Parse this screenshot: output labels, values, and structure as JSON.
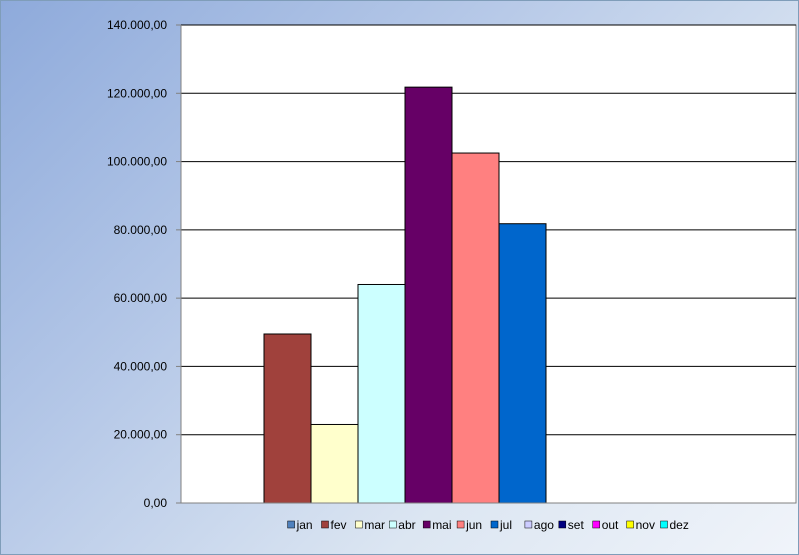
{
  "chart_data": {
    "type": "bar",
    "title": "",
    "xlabel": "",
    "ylabel": "",
    "ylim": [
      0,
      140000
    ],
    "yticks": [
      0,
      20000,
      40000,
      60000,
      80000,
      100000,
      120000,
      140000
    ],
    "ytick_labels": [
      "0,00",
      "20.000,00",
      "40.000,00",
      "60.000,00",
      "80.000,00",
      "100.000,00",
      "120.000,00",
      "140.000,00"
    ],
    "grid": true,
    "legend_position": "bottom",
    "series": [
      {
        "name": "jan",
        "value": 0,
        "color": "#4f81bd"
      },
      {
        "name": "fev",
        "value": 49500,
        "color": "#a0413c"
      },
      {
        "name": "mar",
        "value": 23000,
        "color": "#ffffcc"
      },
      {
        "name": "abr",
        "value": 64000,
        "color": "#ccffff"
      },
      {
        "name": "mai",
        "value": 121800,
        "color": "#660066"
      },
      {
        "name": "jun",
        "value": 102500,
        "color": "#ff8080"
      },
      {
        "name": "jul",
        "value": 81800,
        "color": "#0066cc"
      },
      {
        "name": "ago",
        "value": 0,
        "color": "#ccccff"
      },
      {
        "name": "set",
        "value": 0,
        "color": "#000080"
      },
      {
        "name": "out",
        "value": 0,
        "color": "#ff00ff"
      },
      {
        "name": "nov",
        "value": 0,
        "color": "#ffff00"
      },
      {
        "name": "dez",
        "value": 0,
        "color": "#00ffff"
      }
    ]
  }
}
